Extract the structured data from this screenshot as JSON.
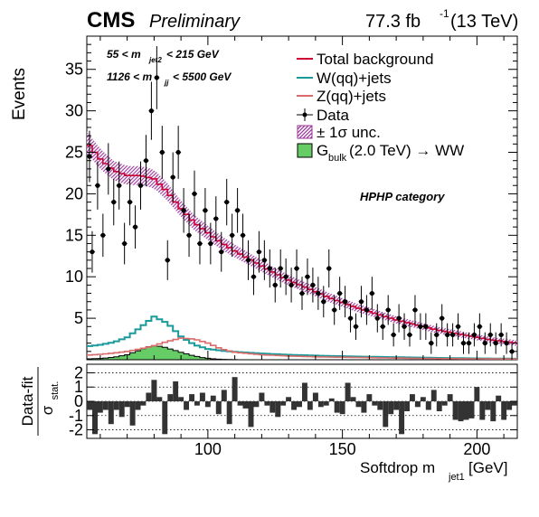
{
  "header": {
    "experiment": "CMS",
    "status": "Preliminary",
    "lumi_value": "77.3 fb",
    "lumi_exp": "-1",
    "lumi_energy": "(13 TeV)"
  },
  "cuts": {
    "line1_pre": "55 < m",
    "line1_sub": "jet2",
    "line1_post": " < 215 GeV",
    "line2_pre": "1126 < m",
    "line2_sub": "jj",
    "line2_post": " < 5500 GeV"
  },
  "category_label": "HPHP category",
  "legend": {
    "total": "Total background",
    "wjets": "W(qq)+jets",
    "zjets": "Z(qq)+jets",
    "data": "Data",
    "unc": "± 1σ unc.",
    "signal_pre": "G",
    "signal_sub": "bulk",
    "signal_post": " (2.0 TeV) → WW"
  },
  "axes": {
    "ylabel": "Events",
    "xlabel_pre": "Softdrop m",
    "xlabel_sub": "jet1",
    "xlabel_post": " [GeV]",
    "pull_num": "Data-fit",
    "pull_den": "σ",
    "pull_den_sub": "stat."
  },
  "colors": {
    "total": "#cc0033",
    "wjets": "#1a9a9a",
    "zjets": "#d96b6b",
    "signal_fill": "#66cc66",
    "unc_band": "#993399",
    "pull_bar": "#333333"
  },
  "chart_data": {
    "type": "histogram",
    "x_range": [
      55,
      215
    ],
    "y_range": [
      0,
      39
    ],
    "pull_range": [
      -2.6,
      2.6
    ],
    "x_ticks": [
      100,
      150,
      200
    ],
    "y_ticks": [
      5,
      10,
      15,
      20,
      25,
      30,
      35
    ],
    "pull_ticks": [
      -2,
      -1,
      0,
      1,
      2
    ],
    "bin_width": 2,
    "total_background": [
      [
        55,
        26.2
      ],
      [
        60,
        24.2
      ],
      [
        65,
        22.8
      ],
      [
        70,
        22.2
      ],
      [
        75,
        22.2
      ],
      [
        80,
        21.8
      ],
      [
        85,
        20.2
      ],
      [
        90,
        18.2
      ],
      [
        95,
        16.5
      ],
      [
        100,
        15.3
      ],
      [
        105,
        14.1
      ],
      [
        110,
        13.1
      ],
      [
        115,
        12.2
      ],
      [
        120,
        11.3
      ],
      [
        125,
        10.4
      ],
      [
        130,
        9.6
      ],
      [
        135,
        8.9
      ],
      [
        140,
        8.2
      ],
      [
        145,
        7.5
      ],
      [
        150,
        6.9
      ],
      [
        155,
        6.3
      ],
      [
        160,
        5.8
      ],
      [
        165,
        5.3
      ],
      [
        170,
        4.8
      ],
      [
        175,
        4.4
      ],
      [
        180,
        4.0
      ],
      [
        185,
        3.6
      ],
      [
        190,
        3.3
      ],
      [
        195,
        3.0
      ],
      [
        200,
        2.7
      ],
      [
        205,
        2.4
      ],
      [
        210,
        2.2
      ],
      [
        215,
        2.0
      ]
    ],
    "wjets": [
      [
        55,
        1.6
      ],
      [
        60,
        1.8
      ],
      [
        65,
        2.1
      ],
      [
        70,
        2.7
      ],
      [
        75,
        3.9
      ],
      [
        80,
        5.2
      ],
      [
        85,
        4.4
      ],
      [
        90,
        2.8
      ],
      [
        95,
        1.8
      ],
      [
        100,
        1.3
      ],
      [
        105,
        1.1
      ],
      [
        110,
        0.95
      ],
      [
        120,
        0.75
      ],
      [
        130,
        0.6
      ],
      [
        140,
        0.5
      ],
      [
        150,
        0.42
      ],
      [
        160,
        0.36
      ],
      [
        170,
        0.3
      ],
      [
        180,
        0.25
      ],
      [
        190,
        0.2
      ],
      [
        200,
        0.16
      ],
      [
        215,
        0.12
      ]
    ],
    "zjets": [
      [
        55,
        0.55
      ],
      [
        60,
        0.65
      ],
      [
        65,
        0.8
      ],
      [
        70,
        1.0
      ],
      [
        75,
        1.3
      ],
      [
        80,
        1.7
      ],
      [
        85,
        2.2
      ],
      [
        90,
        2.6
      ],
      [
        95,
        2.5
      ],
      [
        100,
        2.0
      ],
      [
        105,
        1.3
      ],
      [
        110,
        0.9
      ],
      [
        120,
        0.6
      ],
      [
        130,
        0.45
      ],
      [
        140,
        0.35
      ],
      [
        150,
        0.3
      ],
      [
        160,
        0.25
      ],
      [
        170,
        0.2
      ],
      [
        180,
        0.16
      ],
      [
        190,
        0.13
      ],
      [
        200,
        0.11
      ],
      [
        215,
        0.08
      ]
    ],
    "signal": [
      [
        55,
        0.1
      ],
      [
        60,
        0.15
      ],
      [
        65,
        0.3
      ],
      [
        70,
        0.6
      ],
      [
        75,
        1.2
      ],
      [
        79,
        1.7
      ],
      [
        83,
        1.6
      ],
      [
        87,
        1.2
      ],
      [
        91,
        0.8
      ],
      [
        95,
        0.45
      ],
      [
        99,
        0.2
      ],
      [
        103,
        0.08
      ],
      [
        108,
        0.02
      ],
      [
        112,
        0
      ]
    ],
    "data": [
      [
        56,
        24.5,
        3.1
      ],
      [
        57,
        13,
        2.5
      ],
      [
        59,
        21,
        2.9
      ],
      [
        61,
        15,
        2.6
      ],
      [
        63,
        23,
        3.1
      ],
      [
        65,
        19,
        2.8
      ],
      [
        67,
        21,
        2.9
      ],
      [
        69,
        14,
        2.5
      ],
      [
        71,
        19,
        2.8
      ],
      [
        73,
        16,
        2.6
      ],
      [
        75,
        21,
        2.9
      ],
      [
        77,
        24,
        3.1
      ],
      [
        79,
        30,
        3.5
      ],
      [
        81,
        34,
        3.8
      ],
      [
        83,
        25,
        3.2
      ],
      [
        85,
        12,
        2.4
      ],
      [
        87,
        22,
        3.0
      ],
      [
        89,
        25,
        3.2
      ],
      [
        91,
        18,
        2.7
      ],
      [
        93,
        15,
        2.6
      ],
      [
        95,
        20,
        2.8
      ],
      [
        97,
        14,
        2.5
      ],
      [
        99,
        18,
        2.7
      ],
      [
        101,
        14,
        2.5
      ],
      [
        103,
        17,
        2.7
      ],
      [
        105,
        13,
        2.4
      ],
      [
        107,
        19,
        2.8
      ],
      [
        109,
        15,
        2.6
      ],
      [
        111,
        18,
        2.7
      ],
      [
        113,
        15,
        2.6
      ],
      [
        115,
        12,
        2.4
      ],
      [
        117,
        10,
        2.2
      ],
      [
        119,
        13,
        2.5
      ],
      [
        121,
        12,
        2.4
      ],
      [
        123,
        11,
        2.3
      ],
      [
        125,
        9,
        2.1
      ],
      [
        127,
        11,
        2.3
      ],
      [
        129,
        10,
        2.2
      ],
      [
        131,
        9,
        2.1
      ],
      [
        133,
        11,
        2.3
      ],
      [
        135,
        8,
        2.0
      ],
      [
        137,
        10,
        2.2
      ],
      [
        139,
        9,
        2.1
      ],
      [
        141,
        8,
        2.0
      ],
      [
        143,
        7,
        1.9
      ],
      [
        145,
        11,
        2.3
      ],
      [
        147,
        6,
        1.8
      ],
      [
        149,
        8,
        2.0
      ],
      [
        151,
        7,
        1.9
      ],
      [
        153,
        5,
        1.7
      ],
      [
        155,
        4,
        1.6
      ],
      [
        157,
        7,
        1.9
      ],
      [
        159,
        6,
        1.8
      ],
      [
        161,
        8,
        2.0
      ],
      [
        163,
        5,
        1.7
      ],
      [
        165,
        4,
        1.6
      ],
      [
        167,
        6,
        1.8
      ],
      [
        169,
        3,
        1.4
      ],
      [
        171,
        5,
        1.7
      ],
      [
        173,
        4,
        1.6
      ],
      [
        175,
        3,
        1.4
      ],
      [
        177,
        6,
        1.8
      ],
      [
        179,
        4,
        1.6
      ],
      [
        181,
        4,
        1.6
      ],
      [
        183,
        2,
        1.3
      ],
      [
        185,
        3,
        1.4
      ],
      [
        187,
        5,
        1.7
      ],
      [
        189,
        3,
        1.4
      ],
      [
        191,
        3,
        1.4
      ],
      [
        193,
        4,
        1.6
      ],
      [
        195,
        2,
        1.3
      ],
      [
        197,
        2,
        1.3
      ],
      [
        199,
        3,
        1.4
      ],
      [
        201,
        4,
        1.6
      ],
      [
        203,
        2,
        1.3
      ],
      [
        205,
        3,
        1.4
      ],
      [
        207,
        2,
        1.3
      ],
      [
        209,
        3,
        1.4
      ],
      [
        211,
        2,
        1.3
      ],
      [
        213,
        1,
        1.0
      ]
    ],
    "pulls": [
      [
        56,
        -0.6
      ],
      [
        58,
        -2.3
      ],
      [
        60,
        -0.8
      ],
      [
        62,
        -0.6
      ],
      [
        64,
        -1.6
      ],
      [
        66,
        -0.6
      ],
      [
        68,
        -1.1
      ],
      [
        70,
        -0.4
      ],
      [
        72,
        -1.7
      ],
      [
        74,
        -0.6
      ],
      [
        76,
        -0.3
      ],
      [
        78,
        0.6
      ],
      [
        80,
        1.5
      ],
      [
        82,
        0.3
      ],
      [
        84,
        -2.3
      ],
      [
        86,
        0.5
      ],
      [
        88,
        1.4
      ],
      [
        90,
        0.3
      ],
      [
        92,
        -0.6
      ],
      [
        94,
        0.5
      ],
      [
        96,
        -0.3
      ],
      [
        98,
        0.6
      ],
      [
        100,
        -0.4
      ],
      [
        102,
        0.4
      ],
      [
        104,
        -0.9
      ],
      [
        106,
        0.8
      ],
      [
        108,
        -1.6
      ],
      [
        110,
        1.7
      ],
      [
        112,
        -0.3
      ],
      [
        114,
        -0.5
      ],
      [
        116,
        -1.8
      ],
      [
        118,
        -0.4
      ],
      [
        120,
        0.6
      ],
      [
        122,
        -0.3
      ],
      [
        124,
        -0.8
      ],
      [
        126,
        -1.1
      ],
      [
        128,
        -0.3
      ],
      [
        130,
        0.3
      ],
      [
        132,
        -0.6
      ],
      [
        134,
        -0.4
      ],
      [
        136,
        1.3
      ],
      [
        138,
        -0.6
      ],
      [
        140,
        0.6
      ],
      [
        142,
        -0.4
      ],
      [
        144,
        -0.3
      ],
      [
        146,
        0.2
      ],
      [
        148,
        -0.8
      ],
      [
        150,
        -0.9
      ],
      [
        152,
        1.3
      ],
      [
        154,
        0.3
      ],
      [
        156,
        -0.4
      ],
      [
        158,
        -0.8
      ],
      [
        160,
        0.5
      ],
      [
        162,
        -0.3
      ],
      [
        164,
        -0.6
      ],
      [
        166,
        -1.8
      ],
      [
        168,
        -0.9
      ],
      [
        170,
        -0.6
      ],
      [
        172,
        -2.3
      ],
      [
        174,
        -0.7
      ],
      [
        176,
        0.5
      ],
      [
        178,
        -0.4
      ],
      [
        180,
        0.3
      ],
      [
        182,
        -0.6
      ],
      [
        184,
        0.8
      ],
      [
        186,
        -0.7
      ],
      [
        188,
        -0.3
      ],
      [
        190,
        0.5
      ],
      [
        192,
        -1.3
      ],
      [
        194,
        -1.4
      ],
      [
        196,
        -1.3
      ],
      [
        198,
        -1.2
      ],
      [
        200,
        1.0
      ],
      [
        202,
        -1.3
      ],
      [
        204,
        -0.6
      ],
      [
        206,
        -1.4
      ],
      [
        208,
        0.4
      ],
      [
        210,
        -1.3
      ],
      [
        212,
        -0.6
      ],
      [
        214,
        -0.3
      ]
    ]
  }
}
